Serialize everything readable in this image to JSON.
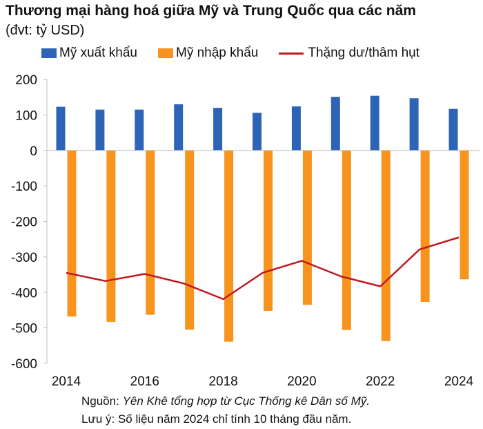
{
  "chart_data": {
    "type": "bar",
    "title": "Thương mại hàng hoá giữa Mỹ và Trung Quốc qua các năm",
    "subtitle": "(đvt: tỷ USD)",
    "categories": [
      "2014",
      "2015",
      "2016",
      "2017",
      "2018",
      "2019",
      "2020",
      "2021",
      "2022",
      "2023",
      "2024"
    ],
    "x_tick_labels": [
      "2014",
      "2016",
      "2018",
      "2020",
      "2022",
      "2024"
    ],
    "series": [
      {
        "name": "Mỹ xuất khẩu",
        "type": "bar",
        "color": "#2e64b7",
        "values": [
          123,
          115,
          115,
          130,
          120,
          106,
          124,
          151,
          154,
          147,
          117
        ]
      },
      {
        "name": "Mỹ nhập khẩu",
        "type": "bar",
        "color": "#f7941d",
        "values": [
          -468,
          -483,
          -463,
          -505,
          -539,
          -452,
          -435,
          -506,
          -537,
          -427,
          -363
        ]
      },
      {
        "name": "Thặng dư/thâm hụt",
        "type": "line",
        "color": "#c0181f",
        "values": [
          -345,
          -368,
          -348,
          -375,
          -419,
          -345,
          -311,
          -355,
          -383,
          -279,
          -245
        ]
      }
    ],
    "ylim": [
      -600,
      200
    ],
    "yticks": [
      200,
      100,
      0,
      -100,
      -200,
      -300,
      -400,
      -500,
      -600
    ],
    "xlabel": "",
    "ylabel": ""
  },
  "footer": {
    "source_label": "Nguồn:",
    "source_text": "Yên Khê tổng hợp từ Cục Thống kê Dân số Mỹ.",
    "note": "Lưu ý: Số liệu năm 2024 chỉ tính 10 tháng đầu năm."
  }
}
